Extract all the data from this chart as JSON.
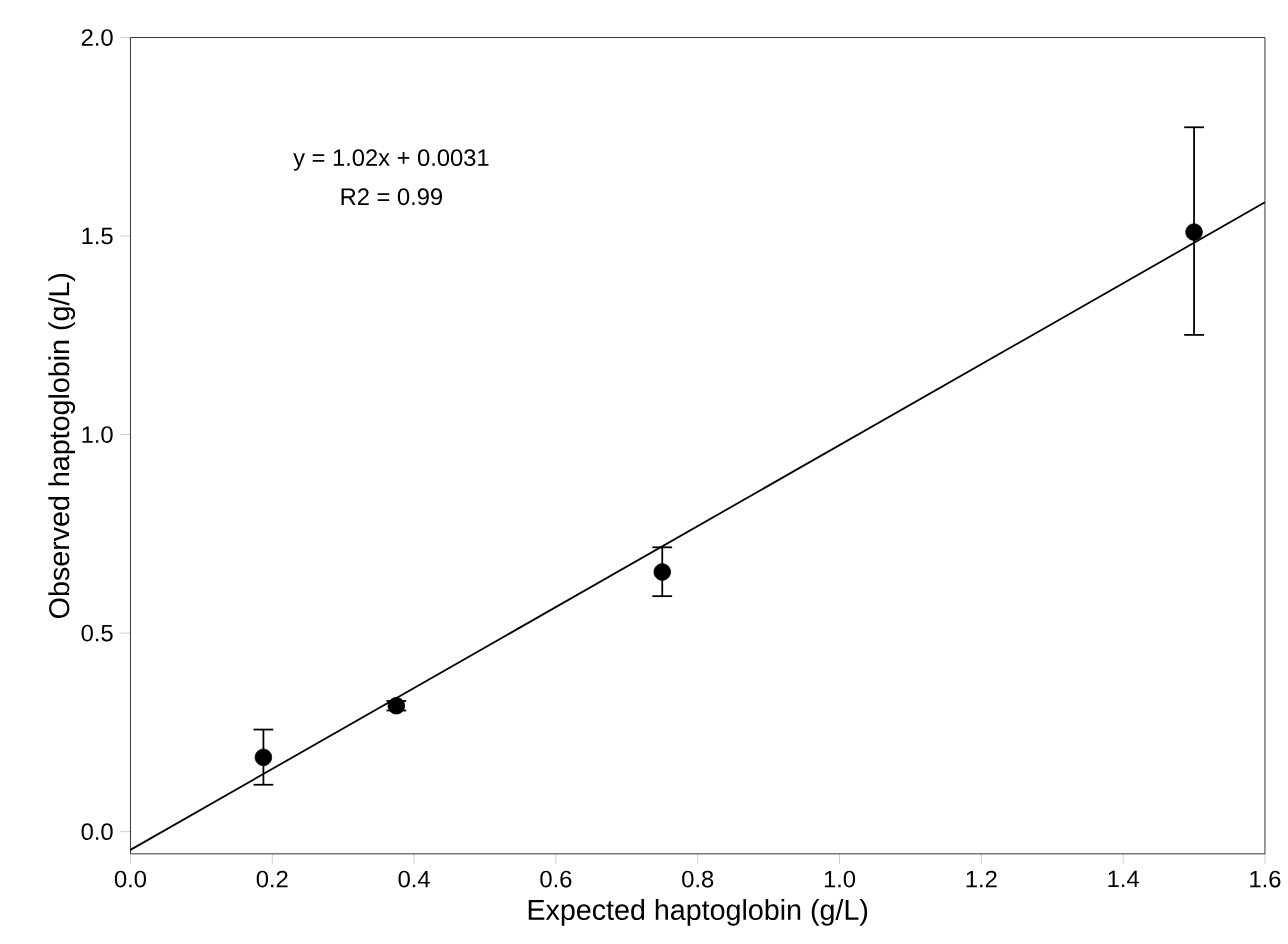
{
  "chart_data": {
    "type": "scatter",
    "xlabel": "Expected haptoglobin (g/L)",
    "ylabel": "Observed haptoglobin (g/L)",
    "annotations": [
      "y = 1.02x + 0.0031",
      "R2 = 0.99"
    ],
    "xlim": [
      0,
      1.6
    ],
    "ylim": [
      -0.056,
      2.0
    ],
    "xticks": [
      {
        "value": 0,
        "label": "0.0"
      },
      {
        "value": 0.2,
        "label": "0.2"
      },
      {
        "value": 0.4,
        "label": "0.4"
      },
      {
        "value": 0.6,
        "label": "0.6"
      },
      {
        "value": 0.8,
        "label": "0.8"
      },
      {
        "value": 1.0,
        "label": "1.0"
      },
      {
        "value": 1.2,
        "label": "1.2"
      },
      {
        "value": 1.4,
        "label": "1.4"
      },
      {
        "value": 1.6,
        "label": "1.6"
      }
    ],
    "yticks": [
      {
        "value": 0,
        "label": "0.0"
      },
      {
        "value": 0.5,
        "label": "0.5"
      },
      {
        "value": 1.0,
        "label": "1.0"
      },
      {
        "value": 1.5,
        "label": "1.5"
      },
      {
        "value": 2.0,
        "label": "2.0"
      }
    ],
    "grid": false,
    "legend": false,
    "series": [
      {
        "color": "#000000",
        "marker": "circle",
        "x": [
          0.1875,
          0.375,
          0.75,
          1.5
        ],
        "values": [
          0.187,
          0.317,
          0.654,
          1.51
        ],
        "errors": [
          [
            0.118,
            0.257
          ],
          [
            0.305,
            0.329
          ],
          [
            0.593,
            0.716
          ],
          [
            1.251,
            1.774
          ]
        ]
      },
      {
        "type": "line",
        "color": "#000000",
        "marker": "none",
        "line_style": "solid",
        "x": [
          0,
          1.6
        ],
        "values": [
          -0.046,
          1.585
        ]
      }
    ]
  }
}
